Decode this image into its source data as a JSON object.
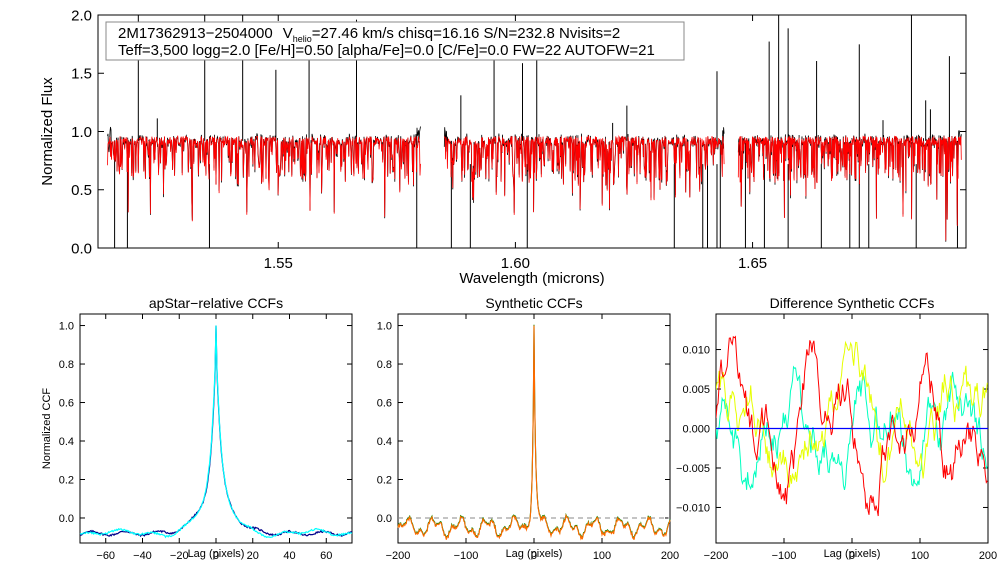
{
  "header": {
    "line1_star": "2M17362913−2504000",
    "line1_v": "V",
    "line1_v_sub": "helio",
    "line1_rest": "=27.46 km/s  chisq=16.16  S/N=232.8  Nvisits=2",
    "line2": "Teff=3,500 logg=2.0 [Fe/H]=0.50 [alpha/Fe]=0.0 [C/Fe]=0.0 FW=22 AUTOFW=21"
  },
  "colors": {
    "observed": "#000000",
    "model": "#ff0000",
    "ccf_a": "#00ffff",
    "ccf_b": "#00008b",
    "ccf_c": "#ff6a00",
    "ccf_d": "#008b00",
    "diff_cyan": "#00ffc0",
    "diff_yellow": "#e6ff00",
    "diff_red": "#ff0000",
    "zero_line": "#0000ff"
  },
  "chart_data": [
    {
      "id": "spectrum",
      "type": "line",
      "title": "",
      "xlabel": "Wavelength (microns)",
      "ylabel": "Normalized Flux",
      "xlim": [
        1.512,
        1.695
      ],
      "ylim": [
        0.0,
        2.0
      ],
      "xticks": [
        1.55,
        1.6,
        1.65
      ],
      "xtick_labels": [
        "1.55",
        "1.60",
        "1.65"
      ],
      "yticks": [
        0.0,
        0.5,
        1.0,
        1.5,
        2.0
      ],
      "ytick_labels": [
        "0.0",
        "0.5",
        "1.0",
        "1.5",
        "2.0"
      ],
      "chips": [
        [
          1.514,
          1.58
        ],
        [
          1.585,
          1.644
        ],
        [
          1.647,
          1.694
        ]
      ],
      "continuum": 0.92,
      "series": [
        {
          "name": "observed spectrum",
          "color_key": "observed"
        },
        {
          "name": "model spectrum",
          "color_key": "model"
        }
      ]
    },
    {
      "id": "apstar",
      "type": "line",
      "title": "apStar−relative CCFs",
      "xlabel": "Lag (pixels)",
      "ylabel": "Normalized CCF",
      "xlim": [
        -74,
        74
      ],
      "ylim": [
        -0.13,
        1.06
      ],
      "xticks": [
        -60,
        -40,
        -20,
        0,
        20,
        40,
        60
      ],
      "xtick_labels": [
        "−60",
        "−40",
        "−20",
        "0",
        "20",
        "40",
        "60"
      ],
      "yticks": [
        0.0,
        0.2,
        0.4,
        0.6,
        0.8,
        1.0
      ],
      "ytick_labels": [
        "0.0",
        "0.2",
        "0.4",
        "0.6",
        "0.8",
        "1.0"
      ],
      "peak": {
        "x": 0,
        "y": 1.0
      },
      "series": [
        {
          "name": "CCF 1",
          "color_key": "ccf_b"
        },
        {
          "name": "CCF 2",
          "color_key": "ccf_a"
        }
      ]
    },
    {
      "id": "synth",
      "type": "line",
      "title": "Synthetic CCFs",
      "xlabel": "Lag (pixels)",
      "ylabel": "",
      "xlim": [
        -200,
        200
      ],
      "ylim": [
        -0.13,
        1.06
      ],
      "xticks": [
        -200,
        -100,
        0,
        100,
        200
      ],
      "xtick_labels": [
        "−200",
        "−100",
        "0",
        "100",
        "200"
      ],
      "yticks": [
        0.0,
        0.2,
        0.4,
        0.6,
        0.8,
        1.0
      ],
      "ytick_labels": [
        "0.0",
        "0.2",
        "0.4",
        "0.6",
        "0.8",
        "1.0"
      ],
      "peak": {
        "x": 0,
        "y": 1.0
      },
      "zero_line": "dashed",
      "series": [
        {
          "name": "CCF 1",
          "color_key": "ccf_d"
        },
        {
          "name": "CCF 2",
          "color_key": "ccf_c"
        }
      ]
    },
    {
      "id": "diff",
      "type": "line",
      "title": "Difference Synthetic CCFs",
      "xlabel": "Lag (pixels)",
      "ylabel": "",
      "xlim": [
        -200,
        200
      ],
      "ylim": [
        -0.0145,
        0.0145
      ],
      "xticks": [
        -200,
        -100,
        0,
        100,
        200
      ],
      "xtick_labels": [
        "−200",
        "−100",
        "0",
        "100",
        "200"
      ],
      "yticks": [
        -0.01,
        -0.005,
        0.0,
        0.005,
        0.01
      ],
      "ytick_labels": [
        "−0.010",
        "−0.005",
        "0.000",
        "0.005",
        "0.010"
      ],
      "zero_line": "solid",
      "series": [
        {
          "name": "difference 1",
          "color_key": "diff_cyan"
        },
        {
          "name": "difference 2",
          "color_key": "diff_yellow"
        },
        {
          "name": "difference 3",
          "color_key": "diff_red"
        }
      ]
    }
  ]
}
